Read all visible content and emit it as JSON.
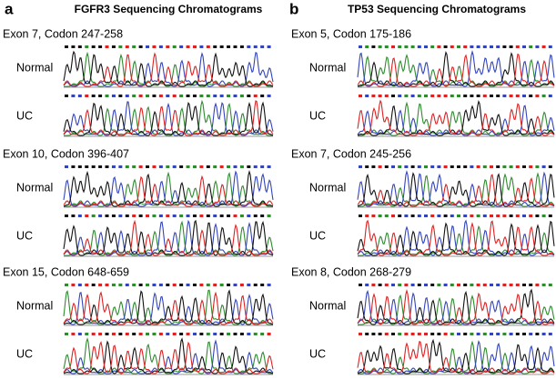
{
  "panels": [
    {
      "letter": "a",
      "title": "FGFR3 Sequencing Chromatograms",
      "exons": [
        {
          "label": "Exon 7, Codon 247-258",
          "rows": [
            "Normal",
            "UC"
          ]
        },
        {
          "label": "Exon 10, Codon 396-407",
          "rows": [
            "Normal",
            "UC"
          ]
        },
        {
          "label": "Exon 15, Codon 648-659",
          "rows": [
            "Normal",
            "UC"
          ]
        }
      ]
    },
    {
      "letter": "b",
      "title": "TP53 Sequencing Chromatograms",
      "exons": [
        {
          "label": "Exon 5, Codon 175-186",
          "rows": [
            "Normal",
            "UC"
          ]
        },
        {
          "label": "Exon 7, Codon 245-256",
          "rows": [
            "Normal",
            "UC"
          ]
        },
        {
          "label": "Exon 8, Codon 268-279",
          "rows": [
            "Normal",
            "UC"
          ]
        }
      ]
    }
  ]
}
